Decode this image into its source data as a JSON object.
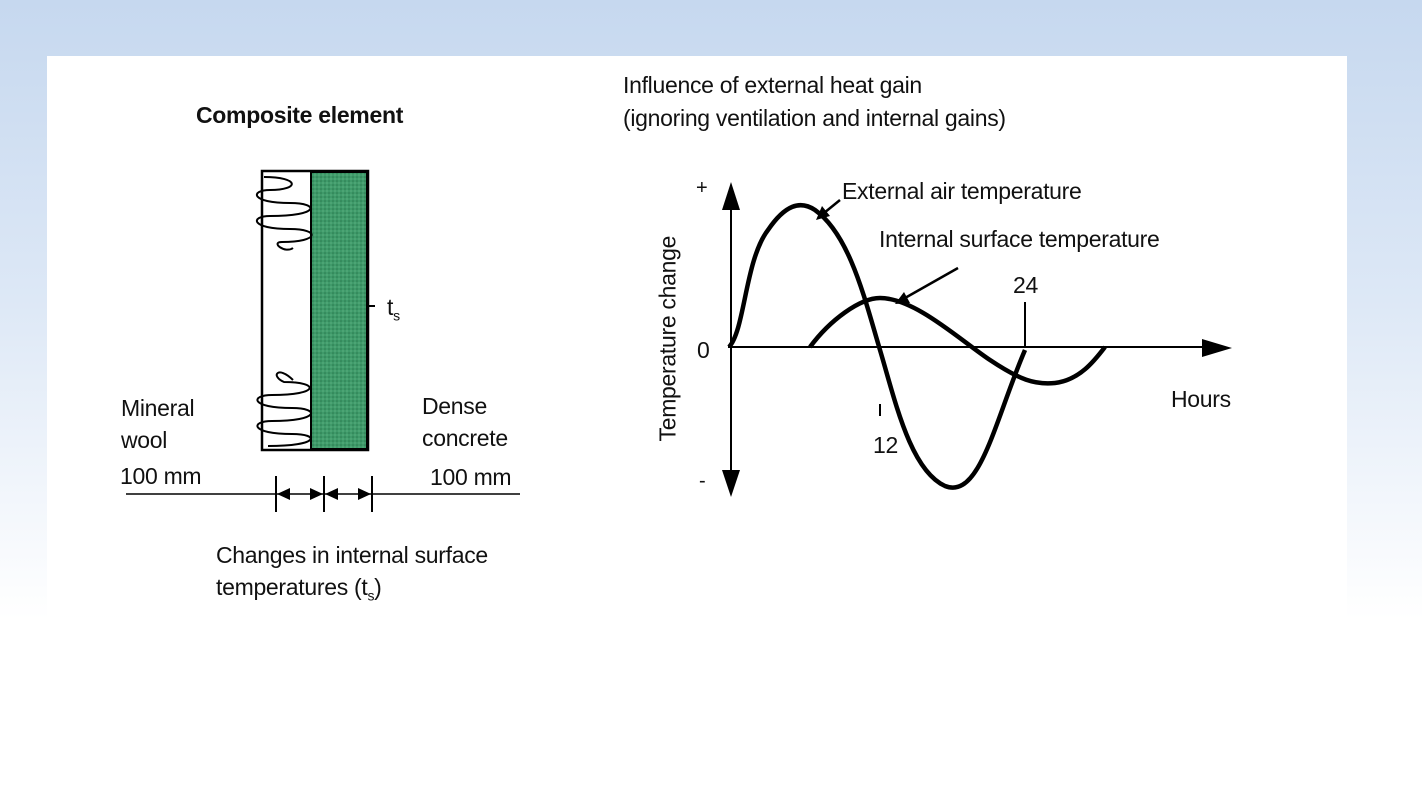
{
  "composite": {
    "title": "Composite element",
    "left_material": {
      "line1": "Mineral",
      "line2": "wool",
      "thickness": "100 mm"
    },
    "right_material": {
      "line1": "Dense",
      "line2": "concrete",
      "thickness": "100 mm"
    },
    "surface_label": "t",
    "surface_label_sub": "s",
    "caption_line1": "Changes in internal surface",
    "caption_line2_prefix": "temperatures (t",
    "caption_line2_sub": "s",
    "caption_line2_suffix": ")",
    "concrete_color": "#3f9a6a"
  },
  "graph": {
    "title_line1": "Influence of external heat gain",
    "title_line2": "(ignoring ventilation and internal gains)",
    "y_axis_label": "Temperature change",
    "y_plus": "+",
    "y_minus": "-",
    "y_zero": "0",
    "x_axis_label": "Hours",
    "tick_12": "12",
    "tick_24": "24",
    "series_external": "External air temperature",
    "series_internal": "Internal surface temperature"
  }
}
